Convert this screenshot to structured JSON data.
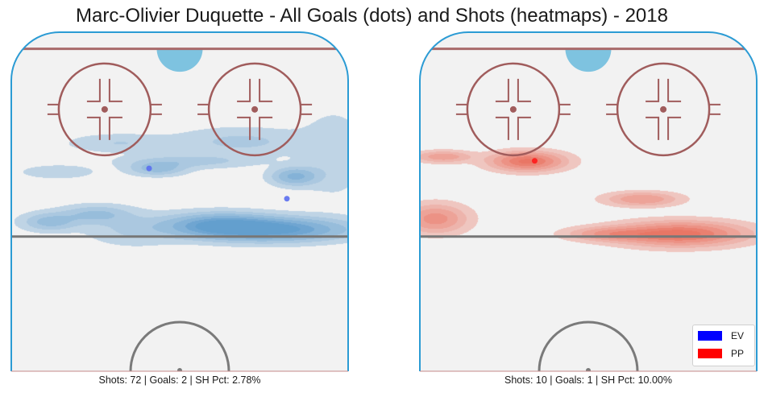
{
  "chart_data": {
    "type": "heatmap",
    "title": "Marc-Olivier Duquette - All Goals (dots) and Shots (heatmaps) - 2018",
    "panels": [
      {
        "name": "EV",
        "color": "#4a90c8",
        "goal_color": "#5a6ef0",
        "caption": "Shots: 72 | Goals: 2 | SH Pct: 2.78%",
        "goals": [
          [
            -20,
            70
          ],
          [
            70,
            50
          ]
        ],
        "shot_clusters": [
          {
            "x": 60,
            "y": 30,
            "sx": 32,
            "sy": 5,
            "w": 1.0
          },
          {
            "x": 25,
            "y": 33,
            "sx": 22,
            "sy": 5,
            "w": 0.75
          },
          {
            "x": 75,
            "y": 65,
            "sx": 10,
            "sy": 4,
            "w": 0.55
          },
          {
            "x": -15,
            "y": 70,
            "sx": 12,
            "sy": 3,
            "w": 0.4
          },
          {
            "x": -55,
            "y": 40,
            "sx": 15,
            "sy": 4,
            "w": 0.35
          },
          {
            "x": -85,
            "y": 35,
            "sx": 12,
            "sy": 4,
            "w": 0.4
          },
          {
            "x": 5,
            "y": 75,
            "sx": 28,
            "sy": 3,
            "w": 0.25
          },
          {
            "x": 40,
            "y": 88,
            "sx": 28,
            "sy": 6,
            "w": 0.22
          },
          {
            "x": -40,
            "y": 87,
            "sx": 22,
            "sy": 4,
            "w": 0.18
          },
          {
            "x": -80,
            "y": 68,
            "sx": 16,
            "sy": 3,
            "w": 0.16
          },
          {
            "x": -30,
            "y": 30,
            "sx": 20,
            "sy": 7,
            "w": 0.2
          },
          {
            "x": 100,
            "y": 80,
            "sx": 14,
            "sy": 18,
            "w": 0.16
          }
        ]
      },
      {
        "name": "PP",
        "color": "#e8604c",
        "goal_color": "#ff1a1a",
        "caption": "Shots: 10 | Goals: 1 | SH Pct: 10.00%",
        "goals": [
          [
            -35,
            75
          ]
        ],
        "shot_clusters": [
          {
            "x": 60,
            "y": 27,
            "sx": 26,
            "sy": 5,
            "w": 1.0
          },
          {
            "x": 15,
            "y": 27,
            "sx": 18,
            "sy": 3,
            "w": 0.5
          },
          {
            "x": -100,
            "y": 37,
            "sx": 13,
            "sy": 6,
            "w": 0.6
          },
          {
            "x": -40,
            "y": 75,
            "sx": 15,
            "sy": 4,
            "w": 0.95
          },
          {
            "x": -95,
            "y": 78,
            "sx": 12,
            "sy": 2.5,
            "w": 0.45
          },
          {
            "x": 35,
            "y": 50,
            "sx": 15,
            "sy": 3,
            "w": 0.5
          }
        ]
      }
    ],
    "legend": [
      {
        "label": "EV",
        "color": "#0000ff"
      },
      {
        "label": "PP",
        "color": "#ff0000"
      }
    ],
    "legend_position": "bottom-right",
    "rink_units": {
      "x_range": [
        -110,
        110
      ],
      "y_range": [
        -64,
        160
      ]
    }
  }
}
